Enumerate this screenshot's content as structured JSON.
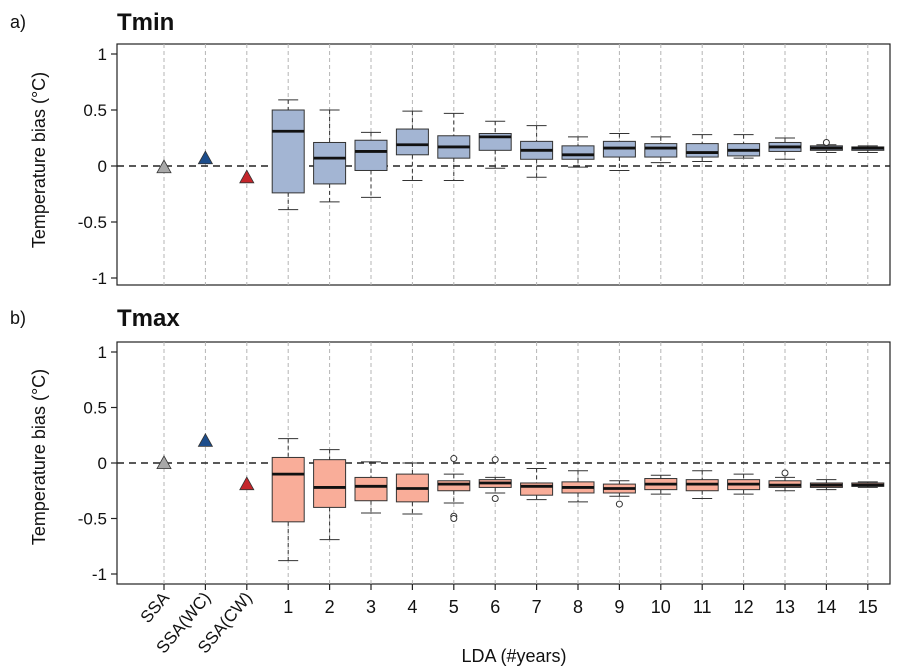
{
  "xlabel": "LDA (#years)",
  "ylabel": "Temperature bias (°C)",
  "categories": [
    "SSA",
    "SSA(WC)",
    "SSA(CW)",
    "1",
    "2",
    "3",
    "4",
    "5",
    "6",
    "7",
    "8",
    "9",
    "10",
    "11",
    "12",
    "13",
    "14",
    "15"
  ],
  "yticks": [
    "1",
    "0.5",
    "0",
    "-0.5",
    "-1"
  ],
  "chart_data": [
    {
      "type": "box",
      "panel_tag": "a)",
      "title": "Tmin",
      "ylabel": "Temperature bias (°C)",
      "ylim": [
        -1.1,
        1.1
      ],
      "box_color": "#a3b5d3",
      "triangles": [
        {
          "category": "SSA",
          "value": -0.01,
          "color": "#a8a8a8"
        },
        {
          "category": "SSA(WC)",
          "value": 0.07,
          "color": "#1c4d8c"
        },
        {
          "category": "SSA(CW)",
          "value": -0.1,
          "color": "#c4262b"
        }
      ],
      "boxes": [
        {
          "category": "1",
          "whisker_low": -0.39,
          "q1": -0.24,
          "median": 0.31,
          "q3": 0.5,
          "whisker_high": 0.59,
          "outliers": []
        },
        {
          "category": "2",
          "whisker_low": -0.32,
          "q1": -0.16,
          "median": 0.07,
          "q3": 0.21,
          "whisker_high": 0.5,
          "outliers": []
        },
        {
          "category": "3",
          "whisker_low": -0.28,
          "q1": -0.04,
          "median": 0.13,
          "q3": 0.23,
          "whisker_high": 0.3,
          "outliers": []
        },
        {
          "category": "4",
          "whisker_low": -0.13,
          "q1": 0.1,
          "median": 0.19,
          "q3": 0.33,
          "whisker_high": 0.49,
          "outliers": []
        },
        {
          "category": "5",
          "whisker_low": -0.13,
          "q1": 0.07,
          "median": 0.17,
          "q3": 0.27,
          "whisker_high": 0.47,
          "outliers": []
        },
        {
          "category": "6",
          "whisker_low": -0.02,
          "q1": 0.14,
          "median": 0.26,
          "q3": 0.29,
          "whisker_high": 0.4,
          "outliers": []
        },
        {
          "category": "7",
          "whisker_low": -0.1,
          "q1": 0.06,
          "median": 0.14,
          "q3": 0.22,
          "whisker_high": 0.36,
          "outliers": []
        },
        {
          "category": "8",
          "whisker_low": -0.01,
          "q1": 0.06,
          "median": 0.1,
          "q3": 0.18,
          "whisker_high": 0.26,
          "outliers": []
        },
        {
          "category": "9",
          "whisker_low": -0.04,
          "q1": 0.08,
          "median": 0.16,
          "q3": 0.22,
          "whisker_high": 0.29,
          "outliers": []
        },
        {
          "category": "10",
          "whisker_low": 0.03,
          "q1": 0.08,
          "median": 0.16,
          "q3": 0.2,
          "whisker_high": 0.26,
          "outliers": []
        },
        {
          "category": "11",
          "whisker_low": 0.04,
          "q1": 0.08,
          "median": 0.12,
          "q3": 0.2,
          "whisker_high": 0.28,
          "outliers": []
        },
        {
          "category": "12",
          "whisker_low": 0.07,
          "q1": 0.09,
          "median": 0.14,
          "q3": 0.2,
          "whisker_high": 0.28,
          "outliers": []
        },
        {
          "category": "13",
          "whisker_low": 0.06,
          "q1": 0.13,
          "median": 0.17,
          "q3": 0.21,
          "whisker_high": 0.25,
          "outliers": []
        },
        {
          "category": "14",
          "whisker_low": 0.12,
          "q1": 0.14,
          "median": 0.16,
          "q3": 0.18,
          "whisker_high": 0.19,
          "outliers": [
            0.21
          ]
        },
        {
          "category": "15",
          "whisker_low": 0.12,
          "q1": 0.14,
          "median": 0.16,
          "q3": 0.17,
          "whisker_high": 0.18,
          "outliers": []
        }
      ]
    },
    {
      "type": "box",
      "panel_tag": "b)",
      "title": "Tmax",
      "ylabel": "Temperature bias (°C)",
      "ylim": [
        -1.1,
        1.1
      ],
      "box_color": "#f9ad99",
      "triangles": [
        {
          "category": "SSA",
          "value": 0.0,
          "color": "#a8a8a8"
        },
        {
          "category": "SSA(WC)",
          "value": 0.2,
          "color": "#1c4d8c"
        },
        {
          "category": "SSA(CW)",
          "value": -0.19,
          "color": "#c4262b"
        }
      ],
      "boxes": [
        {
          "category": "1",
          "whisker_low": -0.88,
          "q1": -0.53,
          "median": -0.1,
          "q3": 0.05,
          "whisker_high": 0.22,
          "outliers": []
        },
        {
          "category": "2",
          "whisker_low": -0.69,
          "q1": -0.4,
          "median": -0.22,
          "q3": 0.03,
          "whisker_high": 0.12,
          "outliers": []
        },
        {
          "category": "3",
          "whisker_low": -0.45,
          "q1": -0.34,
          "median": -0.21,
          "q3": -0.13,
          "whisker_high": 0.01,
          "outliers": []
        },
        {
          "category": "4",
          "whisker_low": -0.46,
          "q1": -0.35,
          "median": -0.23,
          "q3": -0.1,
          "whisker_high": 0.0,
          "outliers": []
        },
        {
          "category": "5",
          "whisker_low": -0.36,
          "q1": -0.25,
          "median": -0.19,
          "q3": -0.16,
          "whisker_high": -0.1,
          "outliers": [
            0.04,
            -0.48,
            -0.5
          ]
        },
        {
          "category": "6",
          "whisker_low": -0.27,
          "q1": -0.22,
          "median": -0.18,
          "q3": -0.15,
          "whisker_high": -0.13,
          "outliers": [
            0.03,
            -0.32
          ]
        },
        {
          "category": "7",
          "whisker_low": -0.33,
          "q1": -0.29,
          "median": -0.21,
          "q3": -0.18,
          "whisker_high": -0.05,
          "outliers": []
        },
        {
          "category": "8",
          "whisker_low": -0.35,
          "q1": -0.27,
          "median": -0.22,
          "q3": -0.17,
          "whisker_high": -0.07,
          "outliers": []
        },
        {
          "category": "9",
          "whisker_low": -0.3,
          "q1": -0.27,
          "median": -0.23,
          "q3": -0.19,
          "whisker_high": -0.16,
          "outliers": [
            -0.37
          ]
        },
        {
          "category": "10",
          "whisker_low": -0.28,
          "q1": -0.24,
          "median": -0.19,
          "q3": -0.14,
          "whisker_high": -0.11,
          "outliers": []
        },
        {
          "category": "11",
          "whisker_low": -0.32,
          "q1": -0.25,
          "median": -0.19,
          "q3": -0.15,
          "whisker_high": -0.07,
          "outliers": []
        },
        {
          "category": "12",
          "whisker_low": -0.28,
          "q1": -0.24,
          "median": -0.19,
          "q3": -0.15,
          "whisker_high": -0.1,
          "outliers": []
        },
        {
          "category": "13",
          "whisker_low": -0.25,
          "q1": -0.22,
          "median": -0.2,
          "q3": -0.16,
          "whisker_high": -0.13,
          "outliers": [
            -0.09
          ]
        },
        {
          "category": "14",
          "whisker_low": -0.24,
          "q1": -0.22,
          "median": -0.2,
          "q3": -0.18,
          "whisker_high": -0.15,
          "outliers": []
        },
        {
          "category": "15",
          "whisker_low": -0.22,
          "q1": -0.21,
          "median": -0.2,
          "q3": -0.18,
          "whisker_high": -0.17,
          "outliers": []
        }
      ]
    }
  ]
}
